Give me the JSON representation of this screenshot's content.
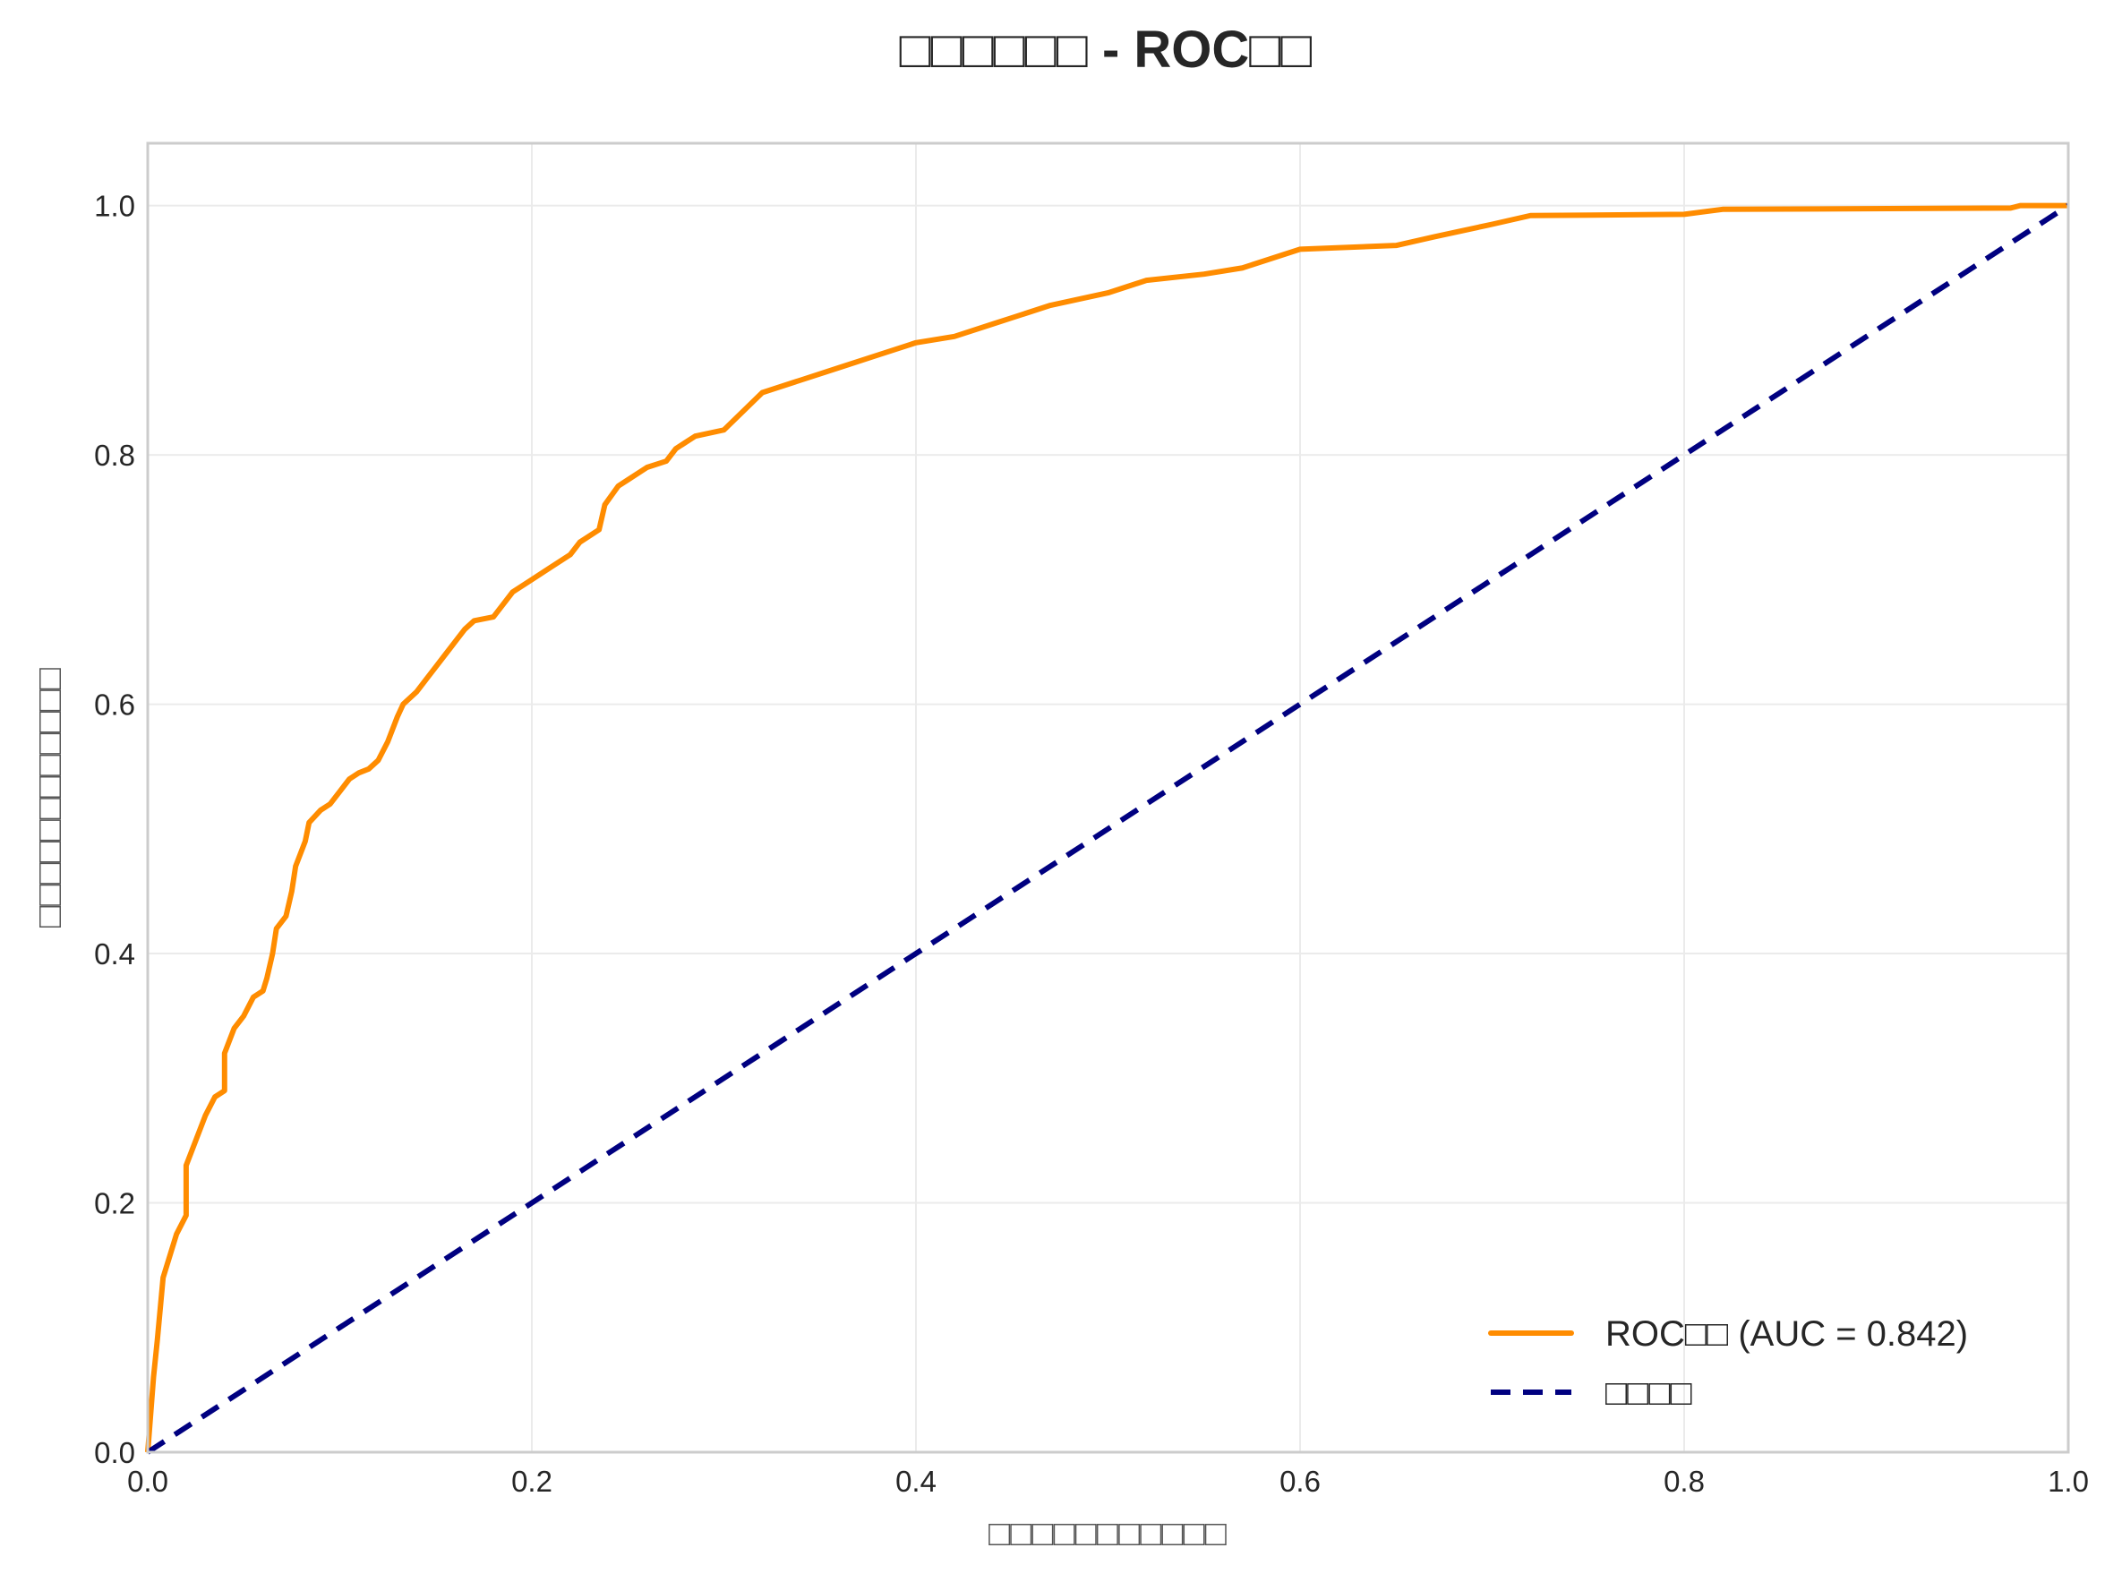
{
  "chart_data": {
    "type": "line",
    "title": "□□□□□□ - ROC□□",
    "xlabel": "□□□□□□□□□□□",
    "ylabel": "□□□□□□□□□□□□",
    "xlim": [
      0,
      1.0
    ],
    "ylim": [
      0,
      1.05
    ],
    "xticks": [
      "0.0",
      "0.2",
      "0.4",
      "0.6",
      "0.8",
      "1.0"
    ],
    "yticks": [
      "0.0",
      "0.2",
      "0.4",
      "0.6",
      "0.8",
      "1.0"
    ],
    "grid": true,
    "legend_position": "bottom-right",
    "series": [
      {
        "name": "ROC□□ (AUC = 0.842)",
        "color": "#ff8c00",
        "style": "solid",
        "x": [
          0,
          0.003,
          0.005,
          0.008,
          0.012,
          0.015,
          0.02,
          0.02,
          0.025,
          0.03,
          0.035,
          0.04,
          0.04,
          0.045,
          0.05,
          0.055,
          0.06,
          0.062,
          0.065,
          0.067,
          0.072,
          0.075,
          0.077,
          0.082,
          0.084,
          0.09,
          0.095,
          0.1,
          0.105,
          0.11,
          0.115,
          0.12,
          0.125,
          0.13,
          0.133,
          0.14,
          0.145,
          0.15,
          0.155,
          0.16,
          0.165,
          0.17,
          0.18,
          0.185,
          0.19,
          0.2,
          0.21,
          0.22,
          0.225,
          0.235,
          0.238,
          0.245,
          0.25,
          0.26,
          0.27,
          0.275,
          0.285,
          0.3,
          0.31,
          0.32,
          0.34,
          0.36,
          0.38,
          0.4,
          0.42,
          0.44,
          0.45,
          0.47,
          0.5,
          0.52,
          0.55,
          0.57,
          0.6,
          0.65,
          0.67,
          0.7,
          0.72,
          0.8,
          0.82,
          0.97,
          0.975,
          1.0
        ],
        "y": [
          0,
          0.06,
          0.09,
          0.14,
          0.16,
          0.175,
          0.19,
          0.23,
          0.25,
          0.27,
          0.285,
          0.29,
          0.32,
          0.34,
          0.35,
          0.365,
          0.37,
          0.38,
          0.4,
          0.42,
          0.43,
          0.45,
          0.47,
          0.49,
          0.505,
          0.515,
          0.52,
          0.53,
          0.54,
          0.545,
          0.548,
          0.555,
          0.57,
          0.59,
          0.6,
          0.61,
          0.62,
          0.63,
          0.64,
          0.65,
          0.66,
          0.667,
          0.67,
          0.68,
          0.69,
          0.7,
          0.71,
          0.72,
          0.73,
          0.74,
          0.76,
          0.775,
          0.78,
          0.79,
          0.795,
          0.805,
          0.815,
          0.82,
          0.835,
          0.85,
          0.86,
          0.87,
          0.88,
          0.89,
          0.895,
          0.905,
          0.91,
          0.92,
          0.93,
          0.94,
          0.945,
          0.95,
          0.965,
          0.968,
          0.975,
          0.985,
          0.992,
          0.993,
          0.997,
          0.998,
          1.0,
          1.0
        ]
      },
      {
        "name": "□□□□",
        "color": "#000080",
        "style": "dashed",
        "x": [
          0,
          1
        ],
        "y": [
          0,
          1
        ]
      }
    ]
  }
}
